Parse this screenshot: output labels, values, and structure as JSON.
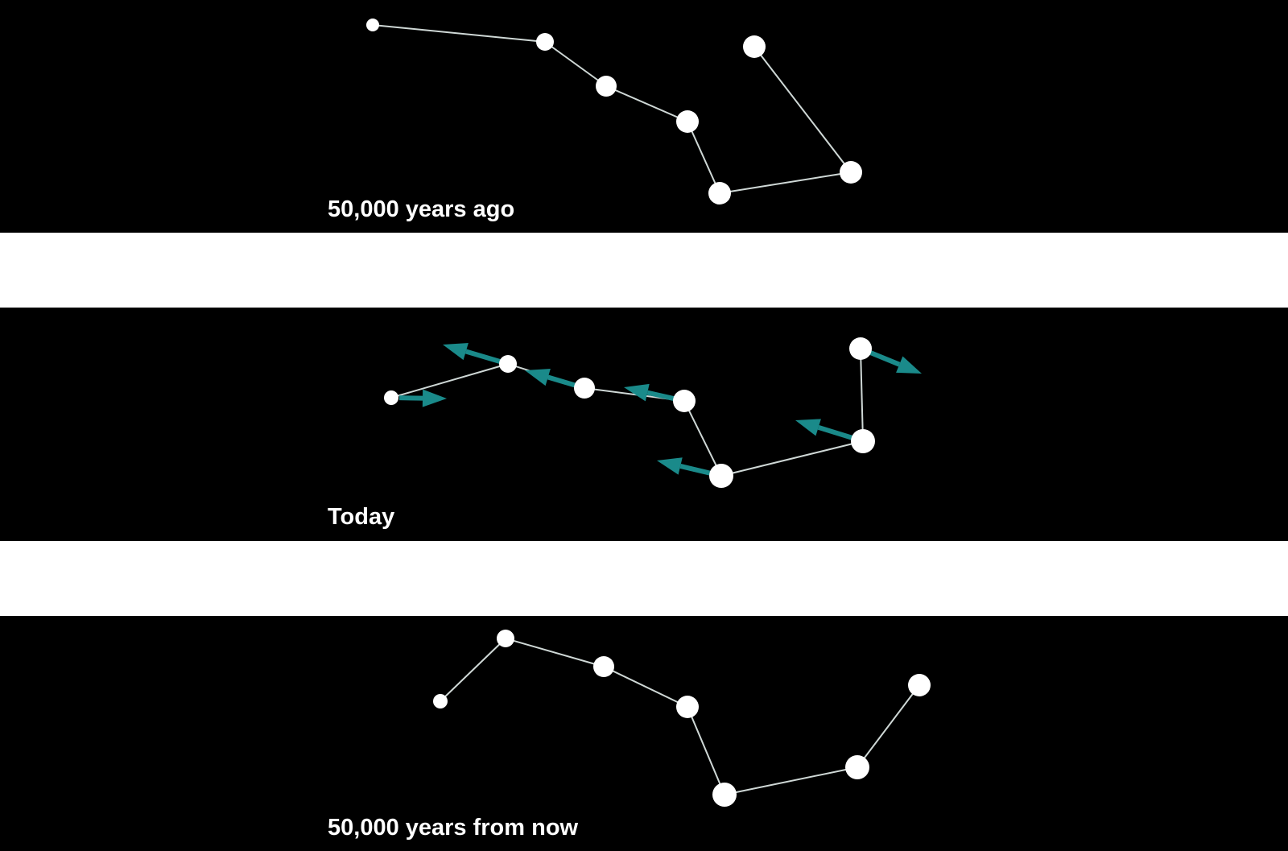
{
  "panels": [
    {
      "label": "50,000 years ago"
    },
    {
      "label": "Today"
    },
    {
      "label": "50,000 years from now"
    }
  ],
  "colors": {
    "background": "#000000",
    "star": "#ffffff",
    "line": "#cfd8d6",
    "motion_arrow": "#1a8a8a",
    "separator": "#ffffff"
  },
  "icons": {
    "star": "circle",
    "motion_arrow": "arrow"
  }
}
